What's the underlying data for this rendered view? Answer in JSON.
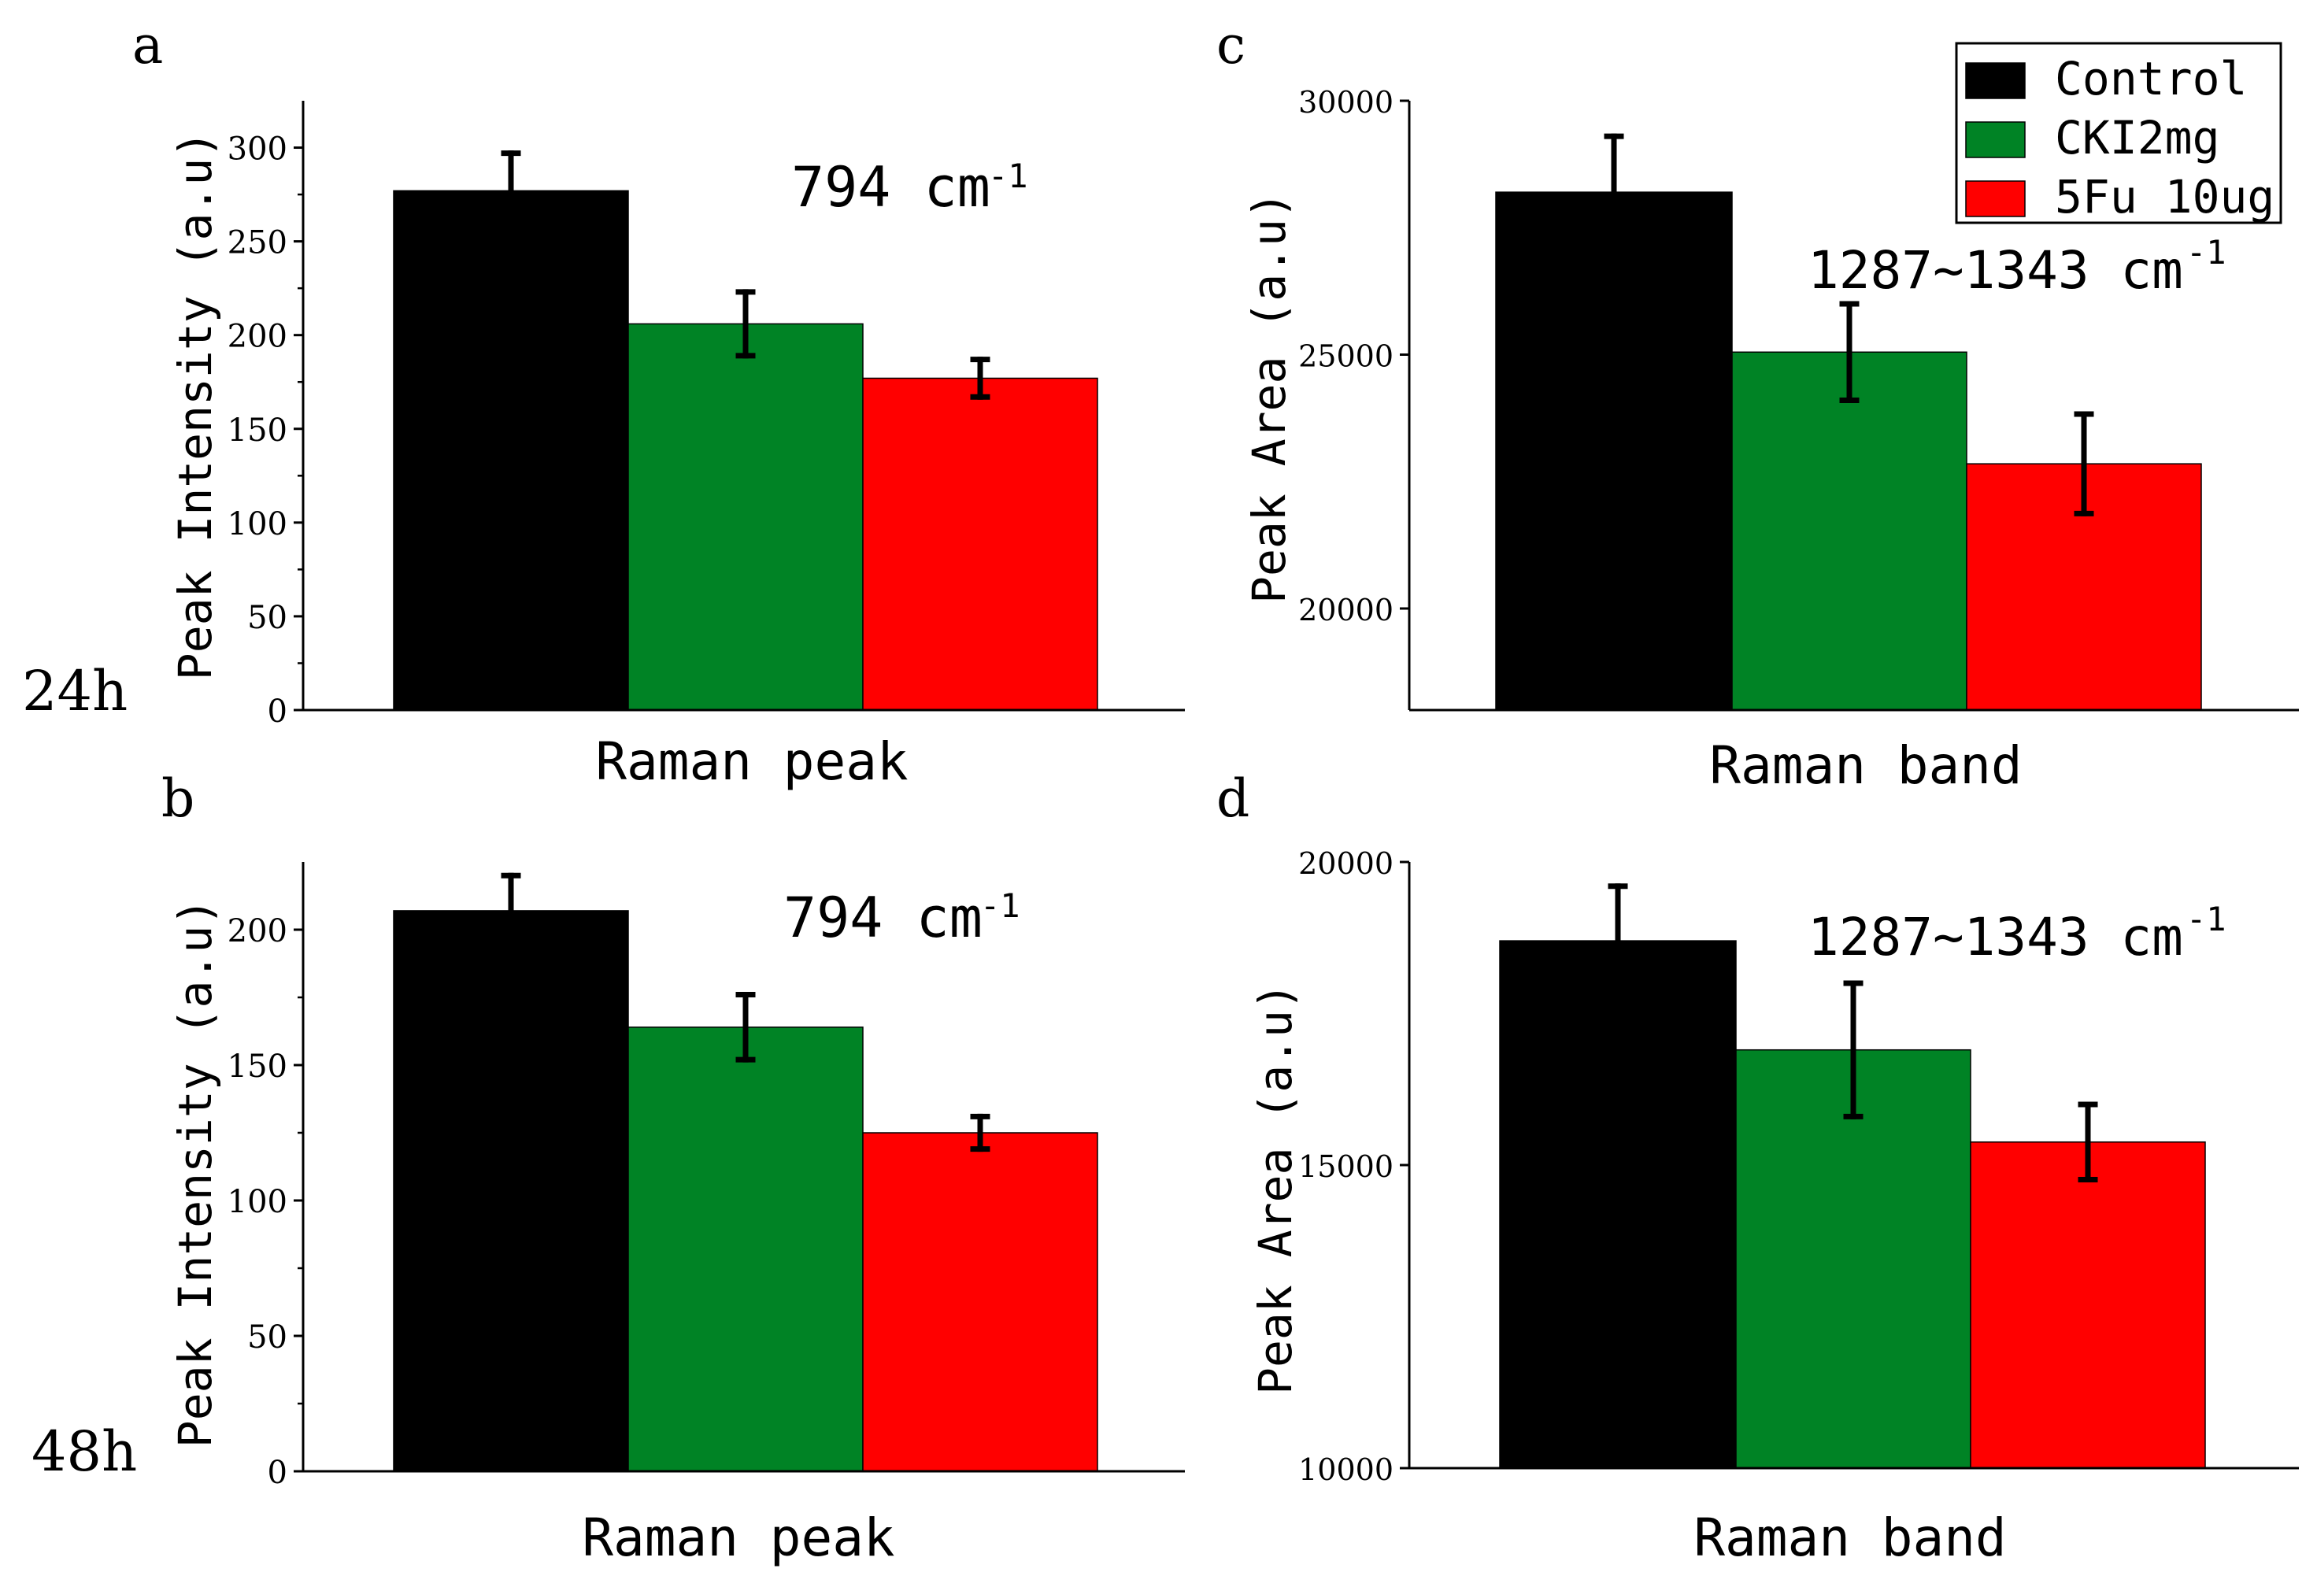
{
  "figure": {
    "row_labels": [
      "24h",
      "48h"
    ]
  },
  "legend": {
    "placement": "top-right",
    "entries": [
      {
        "label": "Control",
        "color": "#000000"
      },
      {
        "label": "CKI2mg",
        "color": "#008325"
      },
      {
        "label": "5Fu 10ug",
        "color": "#ff0000"
      }
    ]
  },
  "chart_data": [
    {
      "panel_label": "a",
      "type": "bar",
      "title": "",
      "xlabel": "Raman peak",
      "ylabel": "Peak Intensity (a.u)",
      "annotation": {
        "base": "794 cm",
        "sup": "-1"
      },
      "ylim": [
        0,
        325
      ],
      "yticks": [
        "0",
        "50",
        "100",
        "150",
        "200",
        "250",
        "300"
      ],
      "categories": [
        "Control",
        "CKI2mg",
        "5Fu 10ug"
      ],
      "values": [
        277,
        206,
        177
      ],
      "errors": [
        20,
        17,
        10
      ],
      "colors": [
        "#000000",
        "#008325",
        "#ff0000"
      ]
    },
    {
      "panel_label": "b",
      "type": "bar",
      "title": "",
      "xlabel": "Raman peak",
      "ylabel": "Peak Intensity (a.u)",
      "annotation": {
        "base": "794 cm",
        "sup": "-1"
      },
      "ylim": [
        0,
        225
      ],
      "yticks": [
        "0",
        "50",
        "100",
        "150",
        "200"
      ],
      "categories": [
        "Control",
        "CKI2mg",
        "5Fu 10ug"
      ],
      "values": [
        207,
        164,
        125
      ],
      "errors": [
        13,
        12,
        6
      ],
      "colors": [
        "#000000",
        "#008325",
        "#ff0000"
      ]
    },
    {
      "panel_label": "c",
      "type": "bar",
      "title": "",
      "xlabel": "Raman band",
      "ylabel": "Peak Area (a.u)",
      "annotation": {
        "base": "1287~1343 cm",
        "sup": "-1"
      },
      "ylim": [
        18000,
        30000
      ],
      "yticks": [
        "20000",
        "25000",
        "30000"
      ],
      "categories": [
        "Control",
        "CKI2mg",
        "5Fu 10ug"
      ],
      "values": [
        28200,
        25050,
        22850
      ],
      "errors": [
        1100,
        950,
        980
      ],
      "colors": [
        "#000000",
        "#008325",
        "#ff0000"
      ]
    },
    {
      "panel_label": "d",
      "type": "bar",
      "title": "",
      "xlabel": "Raman band",
      "ylabel": "Peak Area (a.u)",
      "annotation": {
        "base": "1287~1343 cm",
        "sup": "-1"
      },
      "ylim": [
        10000,
        20000
      ],
      "yticks": [
        "10000",
        "15000",
        "20000"
      ],
      "categories": [
        "Control",
        "CKI2mg",
        "5Fu 10ug"
      ],
      "values": [
        18700,
        16900,
        15380
      ],
      "errors": [
        900,
        1100,
        620
      ],
      "colors": [
        "#000000",
        "#008325",
        "#ff0000"
      ]
    }
  ]
}
